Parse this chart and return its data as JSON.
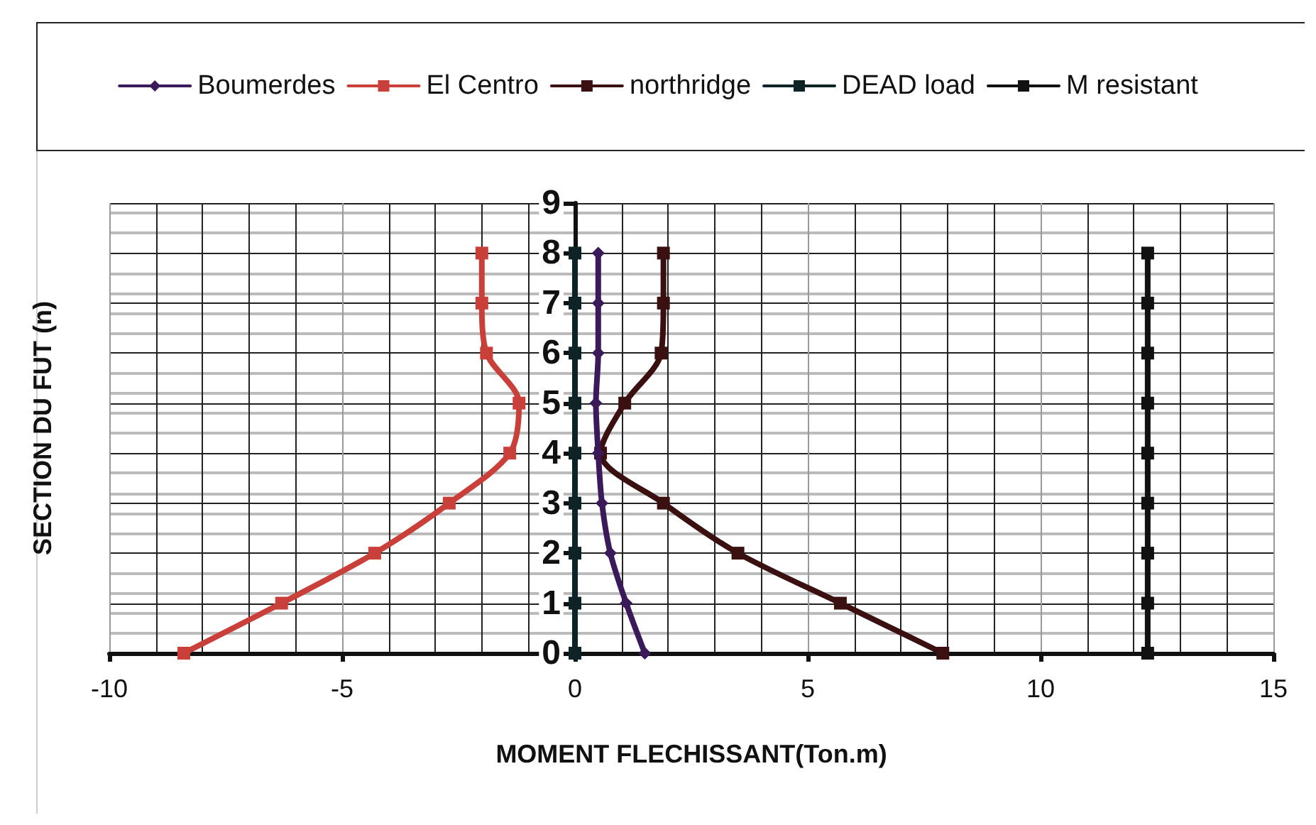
{
  "chart_data": {
    "type": "line",
    "xlabel": "MOMENT FLECHISSANT(Ton.m)",
    "ylabel": "SECTION DU FUT (n)",
    "xlim": [
      -10,
      15
    ],
    "xticks": [
      -10,
      -5,
      0,
      5,
      10,
      15
    ],
    "ylim": [
      0,
      9
    ],
    "yticks": [
      0,
      1,
      2,
      3,
      4,
      5,
      6,
      7,
      8,
      9
    ],
    "grid": true,
    "legend": "top",
    "line_style": "solid",
    "series": [
      {
        "name": "Boumerdes",
        "color": "#3b1a5a",
        "marker": "diamond",
        "x": [
          1.5,
          1.1,
          0.76,
          0.58,
          0.5,
          0.45,
          0.5,
          0.5,
          0.5
        ],
        "values": [
          0,
          1,
          2,
          3,
          4,
          5,
          6,
          7,
          8
        ]
      },
      {
        "name": "El Centro",
        "color": "#c9403a",
        "marker": "square",
        "x": [
          -8.4,
          -6.3,
          -4.3,
          -2.7,
          -1.4,
          -1.2,
          -1.9,
          -2,
          -2
        ],
        "values": [
          0,
          1,
          2,
          3,
          4,
          5,
          6,
          7,
          8
        ]
      },
      {
        "name": "northridge",
        "color": "#3a1010",
        "marker": "square",
        "x": [
          7.9,
          5.7,
          3.5,
          1.9,
          0.55,
          1.07,
          1.85,
          1.9,
          1.9
        ],
        "values": [
          0,
          1,
          2,
          3,
          4,
          5,
          6,
          7,
          8
        ]
      },
      {
        "name": "DEAD load",
        "color": "#0d2326",
        "marker": "square",
        "x": [
          0,
          0,
          0,
          0,
          0,
          0,
          0,
          0,
          0
        ],
        "values": [
          0,
          1,
          2,
          3,
          4,
          5,
          6,
          7,
          8
        ]
      },
      {
        "name": "M resistant",
        "color": "#111111",
        "marker": "square",
        "x": [
          12.3,
          12.3,
          12.3,
          12.3,
          12.3,
          12.3,
          12.3,
          12.3,
          12.3
        ],
        "values": [
          0,
          1,
          2,
          3,
          4,
          5,
          6,
          7,
          8
        ]
      }
    ]
  }
}
